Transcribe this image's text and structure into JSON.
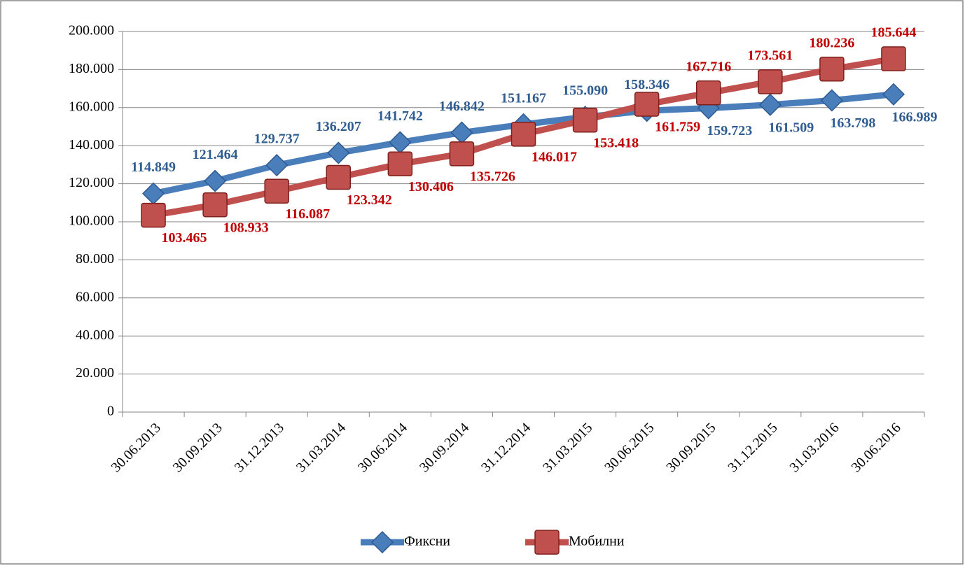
{
  "chart_data": {
    "type": "line",
    "categories": [
      "30.06.2013",
      "30.09.2013",
      "31.12.2013",
      "31.03.2014",
      "30.06.2014",
      "30.09.2014",
      "31.12.2014",
      "31.03.2015",
      "30.06.2015",
      "30.09.2015",
      "31.12.2015",
      "31.03.2016",
      "30.06.2016"
    ],
    "series": [
      {
        "name": "Фиксни",
        "color": "#4a7ebb",
        "marker": "diamond",
        "values": [
          114849,
          121464,
          129737,
          136207,
          141742,
          146842,
          151167,
          155090,
          158346,
          159723,
          161509,
          163798,
          166989
        ],
        "value_labels": [
          "114.849",
          "121.464",
          "129.737",
          "136.207",
          "141.742",
          "146.842",
          "151.167",
          "155.090",
          "158.346",
          "159.723",
          "161.509",
          "163.798",
          "166.989"
        ]
      },
      {
        "name": "Мобилни",
        "color": "#c0504d",
        "marker": "square",
        "values": [
          103465,
          108933,
          116087,
          123342,
          130406,
          135726,
          146017,
          153418,
          161759,
          167716,
          173561,
          180236,
          185644
        ],
        "value_labels": [
          "103.465",
          "108.933",
          "116.087",
          "123.342",
          "130.406",
          "135.726",
          "146.017",
          "153.418",
          "161.759",
          "167.716",
          "173.561",
          "180.236",
          "185.644"
        ]
      }
    ],
    "ylim": [
      0,
      200000
    ],
    "yticks": [
      0,
      {
        "value": 20000,
        "label": "20.000"
      },
      {
        "value": 40000,
        "label": "40.000"
      },
      {
        "value": 60000,
        "label": "60.000"
      },
      {
        "value": 80000,
        "label": "80.000"
      },
      {
        "value": 100000,
        "label": "100.000"
      },
      {
        "value": 120000,
        "label": "120.000"
      },
      {
        "value": 140000,
        "label": "140.000"
      },
      {
        "value": 160000,
        "label": "160.000"
      },
      {
        "value": 180000,
        "label": "180.000"
      },
      {
        "value": 200000,
        "label": "200.000"
      }
    ],
    "grid": true,
    "legend": "bottom"
  }
}
